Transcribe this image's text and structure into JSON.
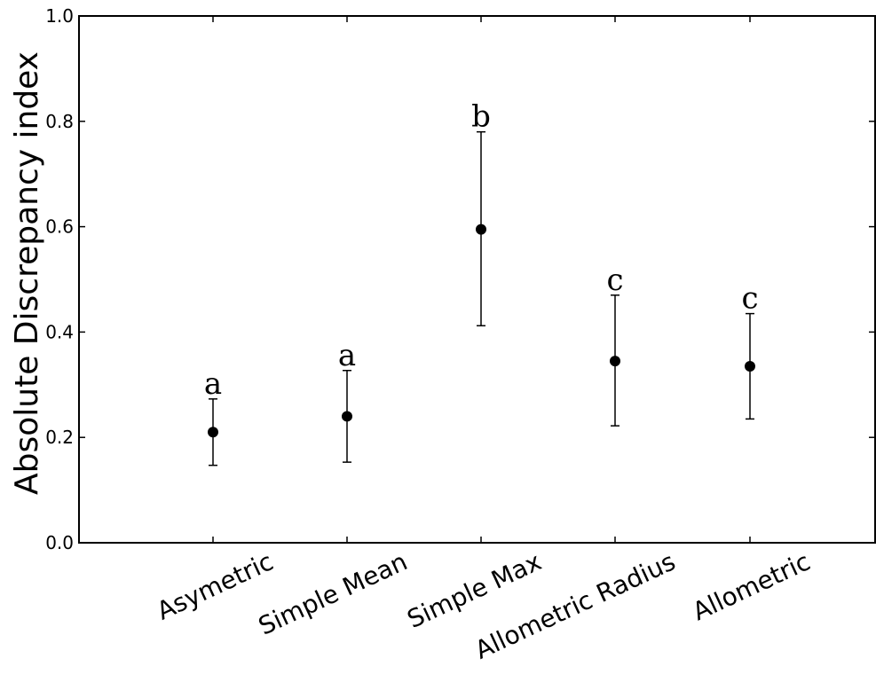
{
  "chart_data": {
    "type": "scatter",
    "title": "",
    "xlabel": "",
    "ylabel": "Absolute Discrepancy index",
    "ylim": [
      0.0,
      1.0
    ],
    "yticks": [
      "0.0",
      "0.2",
      "0.4",
      "0.6",
      "0.8",
      "1.0"
    ],
    "grid": false,
    "legend": "none",
    "categories": [
      "Asymetric",
      "Simple Mean",
      "Simple Max",
      "Allometric Radius",
      "Allometric"
    ],
    "values": [
      0.21,
      0.24,
      0.595,
      0.345,
      0.335
    ],
    "error_low": [
      0.147,
      0.153,
      0.412,
      0.222,
      0.235
    ],
    "error_high": [
      0.273,
      0.327,
      0.78,
      0.47,
      0.435
    ],
    "group_labels": [
      "a",
      "a",
      "b",
      "c",
      "c"
    ],
    "marker_color": "#000000"
  }
}
